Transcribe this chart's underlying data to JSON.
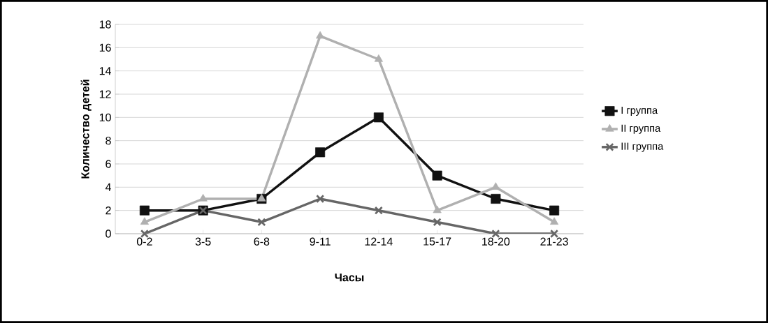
{
  "chart_data": {
    "type": "line",
    "xlabel": "Часы",
    "ylabel": "Количество детей",
    "categories": [
      "0-2",
      "3-5",
      "6-8",
      "9-11",
      "12-14",
      "15-17",
      "18-20",
      "21-23"
    ],
    "series": [
      {
        "name": "I группа",
        "color": "#111111",
        "marker": "square",
        "values": [
          2,
          2,
          3,
          7,
          10,
          5,
          3,
          2
        ]
      },
      {
        "name": "II группа",
        "color": "#b0b0b0",
        "marker": "triangle",
        "values": [
          1,
          3,
          3,
          17,
          15,
          2,
          4,
          1
        ]
      },
      {
        "name": "III группа",
        "color": "#666666",
        "marker": "cross",
        "values": [
          0,
          2,
          1,
          3,
          2,
          1,
          0,
          0
        ]
      }
    ],
    "ylim": [
      0,
      18
    ],
    "yticks": [
      0,
      2,
      4,
      6,
      8,
      10,
      12,
      14,
      16,
      18
    ],
    "grid": "y",
    "legend": "right",
    "line_style": "solid"
  }
}
